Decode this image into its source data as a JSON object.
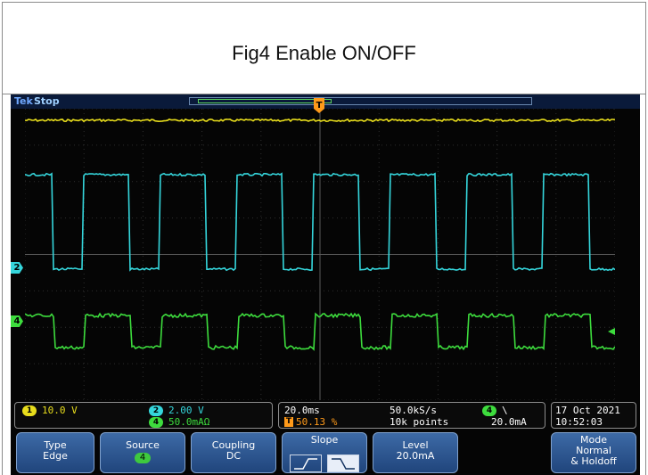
{
  "caption": "Fig4 Enable ON/OFF",
  "scope": {
    "brand": "Tek",
    "acq_state": "Stop",
    "trigger_marker": "T",
    "ch2_marker": "2",
    "ch4_marker": "4",
    "colors": {
      "ch1": "#e8dd1c",
      "ch2": "#35d6dc",
      "ch4": "#3ddc3d",
      "background": "#050505",
      "menu": "#2c5590"
    },
    "waveforms": {
      "ch2_high_fraction": 0.62,
      "ch4_high_fraction": 0.62,
      "cycles_visible": 7.7
    }
  },
  "readouts": {
    "ch1_label": "1",
    "ch1_scale": "10.0 V",
    "ch2_label": "2",
    "ch2_scale": "2.00 V",
    "ch4_label": "4",
    "ch4_scale": "50.0mAΩ",
    "timebase": "20.0ms",
    "trigger_position": "50.13 %",
    "sample_rate": "50.0kS/s",
    "record_length": "10k points",
    "trigger_source": "4",
    "trigger_slope_symbol": "\\",
    "trigger_level": "20.0mA",
    "date": "17 Oct  2021",
    "time": "10:52:03"
  },
  "menu": {
    "type_title": "Type",
    "type_value": "Edge",
    "source_title": "Source",
    "source_value": "4",
    "coupling_title": "Coupling",
    "coupling_value": "DC",
    "slope_title": "Slope",
    "level_title": "Level",
    "level_value": "20.0mA",
    "mode_title": "Mode",
    "mode_value_1": "Normal",
    "mode_value_2": "& Holdoff"
  }
}
